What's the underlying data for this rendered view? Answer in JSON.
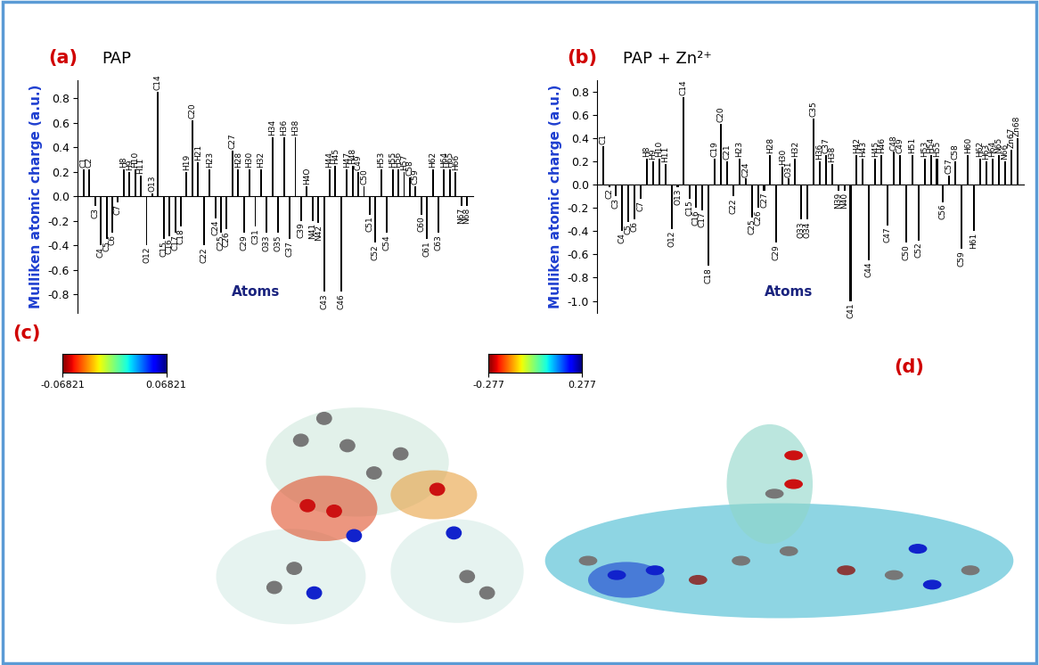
{
  "chart_data": [
    {
      "type": "bar",
      "annotations": [
        "(a)"
      ],
      "title": "PAP",
      "x_label": "Atoms",
      "y_label": "Mulliken atomic charge (a.u.)",
      "categories": [
        "C1",
        "C2",
        "C3",
        "C4",
        "C5",
        "C6",
        "C7",
        "H8",
        "H9",
        "H10",
        "H11",
        "O12",
        "O13",
        "C14",
        "C15",
        "C16",
        "C17",
        "C18",
        "H19",
        "C20",
        "H21",
        "C22",
        "H23",
        "C24",
        "C25",
        "C26",
        "C27",
        "H28",
        "C29",
        "H30",
        "C31",
        "H32",
        "O33",
        "H34",
        "O35",
        "H36",
        "C37",
        "H38",
        "C39",
        "H4O",
        "N41",
        "N42",
        "C43",
        "H44",
        "H45",
        "C46",
        "H47",
        "H48",
        "C49",
        "C50",
        "C51",
        "C52",
        "H53",
        "C54",
        "H55",
        "H56",
        "H57",
        "C58",
        "C59",
        "C60",
        "C61",
        "H62",
        "C63",
        "H64",
        "H65",
        "H66",
        "N67",
        "N68"
      ],
      "values": [
        0.22,
        0.22,
        -0.08,
        -0.4,
        -0.35,
        -0.3,
        -0.05,
        0.22,
        0.2,
        0.22,
        0.17,
        -0.4,
        0.02,
        0.85,
        -0.35,
        -0.33,
        -0.3,
        -0.25,
        0.2,
        0.62,
        0.28,
        -0.4,
        0.22,
        -0.18,
        -0.3,
        -0.27,
        0.37,
        0.22,
        -0.3,
        0.22,
        -0.25,
        0.22,
        -0.3,
        0.48,
        -0.3,
        0.48,
        -0.35,
        0.48,
        -0.2,
        0.08,
        -0.2,
        -0.22,
        -0.78,
        0.22,
        0.25,
        -0.78,
        0.22,
        0.25,
        0.2,
        0.08,
        -0.15,
        -0.38,
        0.22,
        -0.3,
        0.22,
        0.22,
        0.2,
        0.15,
        0.08,
        -0.15,
        -0.35,
        0.22,
        -0.3,
        0.22,
        0.22,
        0.2,
        -0.08,
        -0.08
      ],
      "color": "#000000",
      "ylim": [
        -0.95,
        0.95
      ],
      "yticks": [
        -0.8,
        -0.6,
        -0.4,
        -0.2,
        0.0,
        0.2,
        0.4,
        0.6,
        0.8
      ],
      "tick_labels": "y"
    },
    {
      "type": "bar",
      "annotations": [
        "(b)"
      ],
      "title": "PAP + Zn²⁺",
      "x_label": "Atoms",
      "y_label": "Mulliken atomic charge (a.u.)",
      "categories": [
        "C1",
        "C2",
        "C3",
        "C4",
        "C5",
        "C6",
        "C7",
        "H8",
        "H9",
        "H10",
        "H11",
        "O12",
        "O13",
        "C14",
        "C15",
        "C16",
        "C17",
        "C18",
        "C19",
        "C20",
        "C21",
        "C22",
        "H23",
        "C24",
        "C25",
        "C26",
        "C27",
        "H28",
        "C29",
        "H30",
        "O31",
        "H32",
        "O33",
        "O34",
        "C35",
        "H36",
        "C37",
        "H38",
        "N39",
        "N40",
        "C41",
        "H42",
        "H43",
        "C44",
        "H45",
        "H46",
        "C47",
        "C48",
        "C49",
        "C50",
        "H51",
        "C52",
        "H53",
        "H54",
        "H55",
        "C56",
        "C57",
        "C58",
        "C59",
        "H60",
        "H61",
        "H62",
        "H63",
        "H64",
        "N65",
        "N66",
        "Zn67",
        "Zn68"
      ],
      "values": [
        0.33,
        -0.02,
        -0.1,
        -0.4,
        -0.32,
        -0.3,
        -0.12,
        0.22,
        0.2,
        0.22,
        0.18,
        -0.38,
        -0.02,
        0.75,
        -0.12,
        -0.2,
        -0.22,
        -0.7,
        0.22,
        0.52,
        0.2,
        -0.1,
        0.22,
        0.05,
        -0.28,
        -0.2,
        -0.05,
        0.25,
        -0.5,
        0.15,
        0.05,
        0.22,
        -0.3,
        -0.3,
        0.57,
        0.2,
        0.25,
        0.18,
        -0.05,
        -0.05,
        -1.0,
        0.25,
        0.22,
        -0.65,
        0.22,
        0.25,
        -0.35,
        0.28,
        0.25,
        -0.5,
        0.25,
        -0.48,
        0.22,
        0.25,
        0.22,
        -0.15,
        0.08,
        0.2,
        -0.55,
        0.25,
        -0.4,
        0.22,
        0.2,
        0.22,
        0.25,
        0.2,
        0.3,
        0.4
      ],
      "color": "#000000",
      "ylim": [
        -1.1,
        0.9
      ],
      "yticks": [
        -1.0,
        -0.8,
        -0.6,
        -0.4,
        -0.2,
        0.0,
        0.2,
        0.4,
        0.6,
        0.8
      ],
      "tick_labels": "y"
    }
  ],
  "colorbars": [
    {
      "label": "(c)",
      "range": [
        -0.06821,
        0.06821
      ],
      "ticks": [
        -0.06821,
        0.06821
      ]
    },
    {
      "label": "(d)",
      "range": [
        -0.277,
        0.277
      ],
      "ticks": [
        -0.277,
        0.277
      ]
    }
  ]
}
